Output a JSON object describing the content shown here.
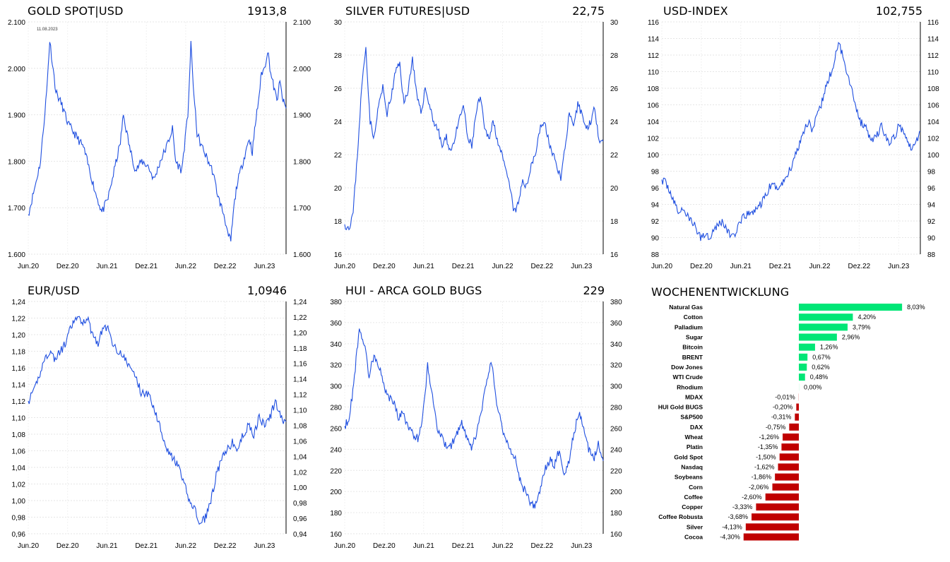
{
  "charts": [
    {
      "id": "gold",
      "title": "GOLD SPOT|USD",
      "value": "1913,8",
      "annotation": "11.08.2023",
      "ymin": 1600,
      "ymax": 2100,
      "yticks": [
        "1.600",
        "1.700",
        "1.800",
        "1.900",
        "2.000",
        "2.100"
      ],
      "xticks": [
        "Jun.20",
        "Dez.20",
        "Jun.21",
        "Dez.21",
        "Jun.22",
        "Dez.22",
        "Jun.23"
      ],
      "points": [
        [
          0,
          1685
        ],
        [
          2,
          1740
        ],
        [
          4,
          1800
        ],
        [
          6,
          1950
        ],
        [
          7,
          2060
        ],
        [
          9,
          1950
        ],
        [
          11,
          1920
        ],
        [
          13,
          1880
        ],
        [
          16,
          1850
        ],
        [
          18,
          1830
        ],
        [
          20,
          1780
        ],
        [
          22,
          1730
        ],
        [
          24,
          1690
        ],
        [
          26,
          1720
        ],
        [
          28,
          1780
        ],
        [
          30,
          1840
        ],
        [
          31,
          1900
        ],
        [
          33,
          1830
        ],
        [
          35,
          1780
        ],
        [
          37,
          1800
        ],
        [
          39,
          1790
        ],
        [
          41,
          1760
        ],
        [
          43,
          1800
        ],
        [
          45,
          1830
        ],
        [
          47,
          1870
        ],
        [
          48,
          1800
        ],
        [
          50,
          1780
        ],
        [
          52,
          1900
        ],
        [
          53,
          2050
        ],
        [
          54,
          1940
        ],
        [
          55,
          1860
        ],
        [
          56,
          1840
        ],
        [
          58,
          1810
        ],
        [
          60,
          1780
        ],
        [
          62,
          1720
        ],
        [
          63,
          1700
        ],
        [
          64,
          1680
        ],
        [
          65,
          1640
        ],
        [
          66,
          1630
        ],
        [
          67,
          1700
        ],
        [
          68,
          1750
        ],
        [
          70,
          1800
        ],
        [
          72,
          1850
        ],
        [
          73,
          1820
        ],
        [
          74,
          1880
        ],
        [
          75,
          1930
        ],
        [
          76,
          1990
        ],
        [
          77,
          2000
        ],
        [
          78,
          2040
        ],
        [
          79,
          1990
        ],
        [
          80,
          1960
        ],
        [
          81,
          1930
        ],
        [
          82,
          1970
        ],
        [
          83,
          1930
        ],
        [
          84,
          1914
        ]
      ]
    },
    {
      "id": "silver",
      "title": "SILVER FUTURES|USD",
      "value": "22,75",
      "ymin": 16,
      "ymax": 30,
      "yticks": [
        "16",
        "18",
        "20",
        "22",
        "24",
        "26",
        "28",
        "30"
      ],
      "xticks": [
        "Jun.20",
        "Dez.20",
        "Jun.21",
        "Dez.21",
        "Jun.22",
        "Dez.22",
        "Jun.23"
      ],
      "points": [
        [
          0,
          17.8
        ],
        [
          1,
          17.6
        ],
        [
          2,
          18.5
        ],
        [
          3,
          22
        ],
        [
          4,
          26
        ],
        [
          5,
          28.5
        ],
        [
          6,
          24
        ],
        [
          7,
          23
        ],
        [
          8,
          25
        ],
        [
          9,
          26
        ],
        [
          10,
          24.5
        ],
        [
          11,
          25.5
        ],
        [
          12,
          27
        ],
        [
          13,
          27.5
        ],
        [
          14,
          25
        ],
        [
          15,
          26
        ],
        [
          16,
          27.8
        ],
        [
          17,
          25.5
        ],
        [
          18,
          24.5
        ],
        [
          19,
          26
        ],
        [
          20,
          25
        ],
        [
          21,
          24
        ],
        [
          22,
          23.5
        ],
        [
          23,
          22.5
        ],
        [
          24,
          23
        ],
        [
          25,
          22.2
        ],
        [
          26,
          23
        ],
        [
          27,
          24
        ],
        [
          28,
          25
        ],
        [
          29,
          23
        ],
        [
          30,
          22.5
        ],
        [
          31,
          24.5
        ],
        [
          32,
          25.5
        ],
        [
          33,
          23.5
        ],
        [
          34,
          23
        ],
        [
          35,
          24
        ],
        [
          36,
          23
        ],
        [
          37,
          22
        ],
        [
          38,
          21
        ],
        [
          39,
          20
        ],
        [
          40,
          18.5
        ],
        [
          41,
          19
        ],
        [
          42,
          20.5
        ],
        [
          43,
          20
        ],
        [
          44,
          21.5
        ],
        [
          45,
          22
        ],
        [
          46,
          23.5
        ],
        [
          47,
          24
        ],
        [
          48,
          23
        ],
        [
          49,
          22
        ],
        [
          50,
          21.5
        ],
        [
          51,
          20.5
        ],
        [
          52,
          22.5
        ],
        [
          53,
          24.5
        ],
        [
          54,
          23.5
        ],
        [
          55,
          25
        ],
        [
          56,
          24.5
        ],
        [
          57,
          23.5
        ],
        [
          58,
          24
        ],
        [
          59,
          24.8
        ],
        [
          60,
          23
        ],
        [
          61,
          22.8
        ]
      ]
    },
    {
      "id": "usd",
      "title": "USD-INDEX",
      "value": "102,755",
      "ymin": 88,
      "ymax": 116,
      "yticks": [
        "88",
        "90",
        "92",
        "94",
        "96",
        "98",
        "100",
        "102",
        "104",
        "106",
        "108",
        "110",
        "112",
        "114",
        "116"
      ],
      "xticks": [
        "Jun.20",
        "Dez.20",
        "Jun.21",
        "Dez.21",
        "Jun.22",
        "Dez.22",
        "Jun.23"
      ],
      "points": [
        [
          0,
          97
        ],
        [
          1,
          96.5
        ],
        [
          2,
          95.5
        ],
        [
          3,
          94
        ],
        [
          4,
          93
        ],
        [
          5,
          93.5
        ],
        [
          6,
          92.5
        ],
        [
          7,
          92
        ],
        [
          8,
          91
        ],
        [
          9,
          90
        ],
        [
          10,
          90.5
        ],
        [
          11,
          90
        ],
        [
          12,
          91
        ],
        [
          13,
          91.5
        ],
        [
          14,
          92
        ],
        [
          15,
          91
        ],
        [
          16,
          90.2
        ],
        [
          17,
          90.5
        ],
        [
          18,
          91.5
        ],
        [
          19,
          92.5
        ],
        [
          20,
          92.8
        ],
        [
          21,
          93
        ],
        [
          22,
          93.5
        ],
        [
          23,
          94
        ],
        [
          24,
          95
        ],
        [
          25,
          96
        ],
        [
          26,
          96.3
        ],
        [
          27,
          96
        ],
        [
          28,
          96.5
        ],
        [
          29,
          97.5
        ],
        [
          30,
          98.5
        ],
        [
          31,
          100
        ],
        [
          32,
          101.5
        ],
        [
          33,
          103
        ],
        [
          34,
          104
        ],
        [
          35,
          103
        ],
        [
          36,
          104.5
        ],
        [
          37,
          106
        ],
        [
          38,
          108
        ],
        [
          39,
          109.5
        ],
        [
          40,
          111
        ],
        [
          41,
          113.5
        ],
        [
          42,
          112
        ],
        [
          43,
          110
        ],
        [
          44,
          108
        ],
        [
          45,
          106
        ],
        [
          46,
          104
        ],
        [
          47,
          103.5
        ],
        [
          48,
          102.5
        ],
        [
          49,
          101.5
        ],
        [
          50,
          102.5
        ],
        [
          51,
          103.5
        ],
        [
          52,
          102
        ],
        [
          53,
          101.5
        ],
        [
          54,
          102
        ],
        [
          55,
          103.5
        ],
        [
          56,
          103
        ],
        [
          57,
          102
        ],
        [
          58,
          100.5
        ],
        [
          59,
          101.5
        ],
        [
          60,
          102.8
        ]
      ]
    },
    {
      "id": "eur",
      "title": "EUR/USD",
      "value": "1,0946",
      "ymin": 0.96,
      "ymax": 1.24,
      "yticks": [
        "0,96",
        "0,98",
        "1,00",
        "1,02",
        "1,04",
        "1,06",
        "1,08",
        "1,10",
        "1,12",
        "1,14",
        "1,16",
        "1,18",
        "1,20",
        "1,22",
        "1,24"
      ],
      "rymin": 0.94,
      "rymax": 1.24,
      "ryticks": [
        "0,94",
        "0,96",
        "0,98",
        "1,00",
        "1,02",
        "1,04",
        "1,06",
        "1,08",
        "1,10",
        "1,12",
        "1,14",
        "1,16",
        "1,18",
        "1,20",
        "1,22",
        "1,24"
      ],
      "xticks": [
        "Jun.20",
        "Dez.20",
        "Jun.21",
        "Dez.21",
        "Jun.22",
        "Dez.22",
        "Jun.23"
      ],
      "points": [
        [
          0,
          1.12
        ],
        [
          1,
          1.13
        ],
        [
          2,
          1.15
        ],
        [
          3,
          1.17
        ],
        [
          4,
          1.18
        ],
        [
          5,
          1.17
        ],
        [
          6,
          1.18
        ],
        [
          7,
          1.19
        ],
        [
          8,
          1.21
        ],
        [
          9,
          1.22
        ],
        [
          10,
          1.215
        ],
        [
          11,
          1.22
        ],
        [
          12,
          1.2
        ],
        [
          13,
          1.19
        ],
        [
          14,
          1.21
        ],
        [
          15,
          1.205
        ],
        [
          16,
          1.185
        ],
        [
          17,
          1.18
        ],
        [
          18,
          1.17
        ],
        [
          19,
          1.16
        ],
        [
          20,
          1.15
        ],
        [
          21,
          1.13
        ],
        [
          22,
          1.13
        ],
        [
          23,
          1.12
        ],
        [
          24,
          1.1
        ],
        [
          25,
          1.08
        ],
        [
          26,
          1.06
        ],
        [
          27,
          1.05
        ],
        [
          28,
          1.04
        ],
        [
          29,
          1.02
        ],
        [
          30,
          1.0
        ],
        [
          31,
          0.99
        ],
        [
          32,
          0.97
        ],
        [
          33,
          0.98
        ],
        [
          34,
          1.0
        ],
        [
          35,
          1.03
        ],
        [
          36,
          1.05
        ],
        [
          37,
          1.06
        ],
        [
          38,
          1.07
        ],
        [
          39,
          1.06
        ],
        [
          40,
          1.08
        ],
        [
          41,
          1.09
        ],
        [
          42,
          1.08
        ],
        [
          43,
          1.1
        ],
        [
          44,
          1.09
        ],
        [
          45,
          1.1
        ],
        [
          46,
          1.12
        ],
        [
          47,
          1.1
        ],
        [
          48,
          1.095
        ]
      ]
    },
    {
      "id": "hui",
      "title": "HUI - ARCA GOLD BUGS",
      "value": "229",
      "ymin": 160,
      "ymax": 380,
      "yticks": [
        "160",
        "180",
        "200",
        "220",
        "240",
        "260",
        "280",
        "300",
        "320",
        "340",
        "360",
        "380"
      ],
      "xticks": [
        "Jun.20",
        "Dez.20",
        "Jun.21",
        "Dez.21",
        "Jun.22",
        "Dez.22",
        "Jun.23"
      ],
      "points": [
        [
          0,
          262
        ],
        [
          1,
          270
        ],
        [
          2,
          310
        ],
        [
          3,
          355
        ],
        [
          4,
          340
        ],
        [
          5,
          310
        ],
        [
          6,
          330
        ],
        [
          7,
          320
        ],
        [
          8,
          300
        ],
        [
          9,
          290
        ],
        [
          10,
          285
        ],
        [
          11,
          270
        ],
        [
          12,
          275
        ],
        [
          13,
          260
        ],
        [
          14,
          255
        ],
        [
          15,
          250
        ],
        [
          16,
          270
        ],
        [
          17,
          320
        ],
        [
          18,
          290
        ],
        [
          19,
          260
        ],
        [
          20,
          250
        ],
        [
          21,
          240
        ],
        [
          22,
          245
        ],
        [
          23,
          255
        ],
        [
          24,
          265
        ],
        [
          25,
          250
        ],
        [
          26,
          240
        ],
        [
          27,
          255
        ],
        [
          28,
          275
        ],
        [
          29,
          300
        ],
        [
          30,
          325
        ],
        [
          31,
          290
        ],
        [
          32,
          265
        ],
        [
          33,
          250
        ],
        [
          34,
          240
        ],
        [
          35,
          230
        ],
        [
          36,
          210
        ],
        [
          37,
          200
        ],
        [
          38,
          190
        ],
        [
          39,
          185
        ],
        [
          40,
          200
        ],
        [
          41,
          220
        ],
        [
          42,
          230
        ],
        [
          43,
          225
        ],
        [
          44,
          240
        ],
        [
          45,
          215
        ],
        [
          46,
          230
        ],
        [
          47,
          255
        ],
        [
          48,
          275
        ],
        [
          49,
          260
        ],
        [
          50,
          240
        ],
        [
          51,
          230
        ],
        [
          52,
          245
        ],
        [
          53,
          229
        ]
      ]
    }
  ],
  "ranking": {
    "title": "WOCHENENTWICKLUNG",
    "positive_color": "#00e676",
    "negative_color": "#c00000",
    "items": [
      {
        "name": "Natural Gas",
        "value": 8.03,
        "label": "8,03%"
      },
      {
        "name": "Cotton",
        "value": 4.2,
        "label": "4,20%"
      },
      {
        "name": "Palladium",
        "value": 3.79,
        "label": "3,79%"
      },
      {
        "name": "Sugar",
        "value": 2.96,
        "label": "2,96%"
      },
      {
        "name": "Bitcoin",
        "value": 1.26,
        "label": "1,26%"
      },
      {
        "name": "BRENT",
        "value": 0.67,
        "label": "0,67%"
      },
      {
        "name": "Dow Jones",
        "value": 0.62,
        "label": "0,62%"
      },
      {
        "name": "WTI Crude",
        "value": 0.48,
        "label": "0,48%"
      },
      {
        "name": "Rhodium",
        "value": 0.0,
        "label": "0,00%"
      },
      {
        "name": "MDAX",
        "value": -0.01,
        "label": "-0,01%"
      },
      {
        "name": "HUI Gold BUGS",
        "value": -0.2,
        "label": "-0,20%"
      },
      {
        "name": "S&P500",
        "value": -0.31,
        "label": "-0,31%"
      },
      {
        "name": "DAX",
        "value": -0.75,
        "label": "-0,75%"
      },
      {
        "name": "Wheat",
        "value": -1.26,
        "label": "-1,26%"
      },
      {
        "name": "Platin",
        "value": -1.35,
        "label": "-1,35%"
      },
      {
        "name": "Gold Spot",
        "value": -1.5,
        "label": "-1,50%"
      },
      {
        "name": "Nasdaq",
        "value": -1.62,
        "label": "-1,62%"
      },
      {
        "name": "Soybeans",
        "value": -1.86,
        "label": "-1,86%"
      },
      {
        "name": "Corn",
        "value": -2.06,
        "label": "-2,06%"
      },
      {
        "name": "Coffee",
        "value": -2.6,
        "label": "-2,60%"
      },
      {
        "name": "Copper",
        "value": -3.33,
        "label": "-3,33%"
      },
      {
        "name": "Coffee Robusta",
        "value": -3.68,
        "label": "-3,68%"
      },
      {
        "name": "Silver",
        "value": -4.13,
        "label": "-4,13%"
      },
      {
        "name": "Cocoa",
        "value": -4.3,
        "label": "-4,30%"
      }
    ]
  },
  "line_color": "#1f4fe0"
}
